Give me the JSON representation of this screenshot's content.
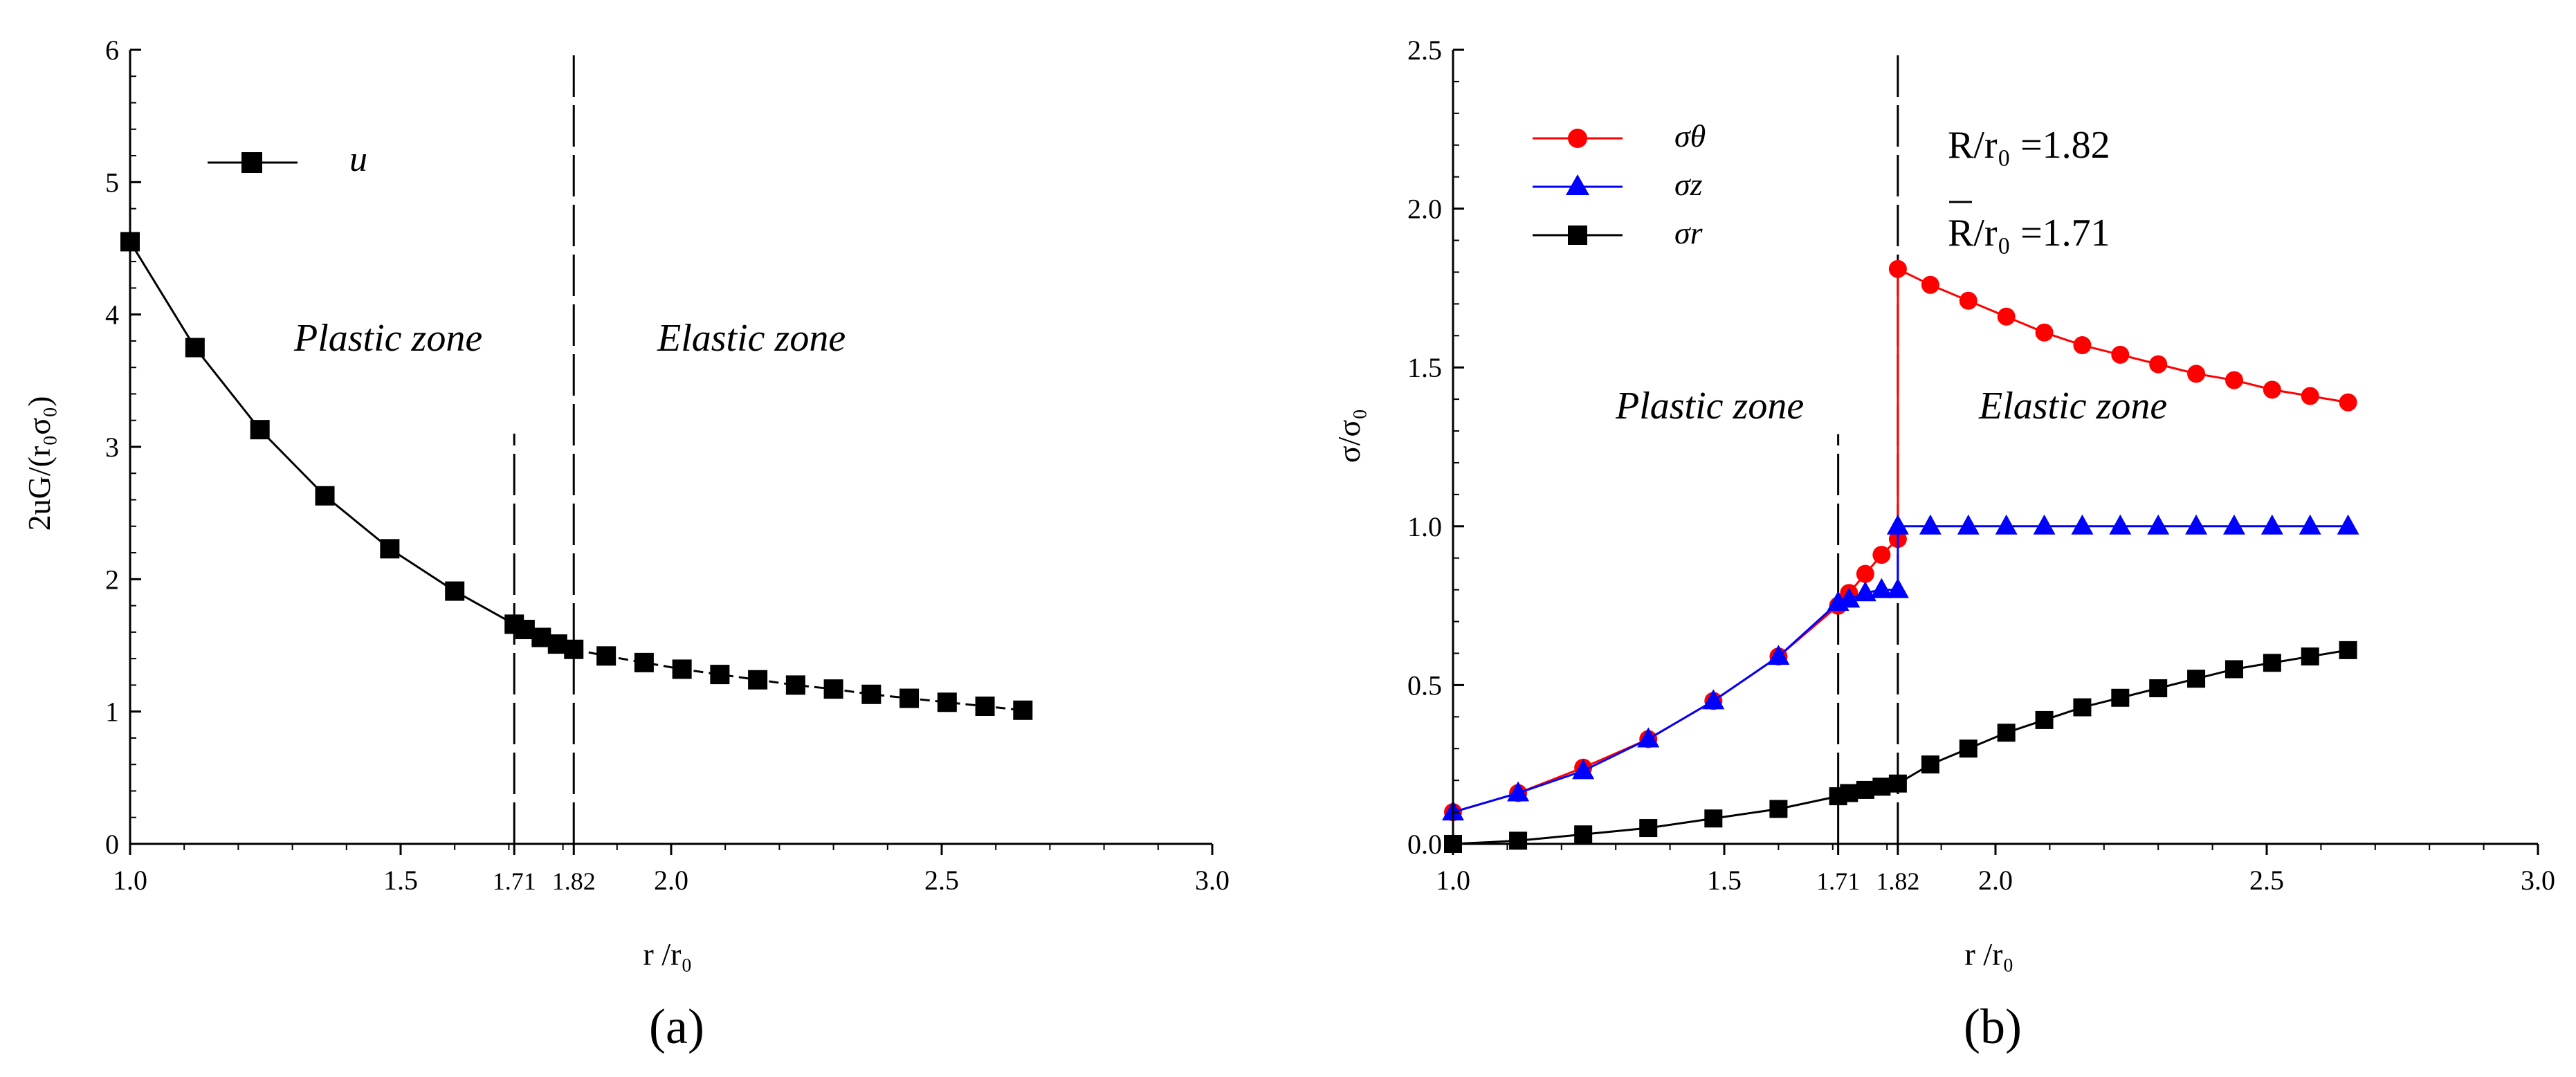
{
  "chart_data": [
    {
      "type": "line",
      "panel_label": "(a)",
      "xlabel": "r /r₀",
      "ylabel": "2uG/(r₀σ₀)",
      "xlim": [
        1.0,
        3.0
      ],
      "ylim": [
        0,
        6
      ],
      "xticks": [
        {
          "value": 1.0,
          "label": "1.0"
        },
        {
          "value": 1.5,
          "label": "1.5"
        },
        {
          "value": 1.71,
          "label": "1.71"
        },
        {
          "value": 1.82,
          "label": "1.82"
        },
        {
          "value": 2.0,
          "label": "2.0"
        },
        {
          "value": 2.5,
          "label": "2.5"
        },
        {
          "value": 3.0,
          "label": "3.0"
        }
      ],
      "yticks": [
        {
          "value": 0,
          "label": "0"
        },
        {
          "value": 1,
          "label": "1"
        },
        {
          "value": 2,
          "label": "2"
        },
        {
          "value": 3,
          "label": "3"
        },
        {
          "value": 4,
          "label": "4"
        },
        {
          "value": 5,
          "label": "5"
        },
        {
          "value": 6,
          "label": "6"
        }
      ],
      "vlines": [
        {
          "x": 1.71,
          "y_top": 3.1
        },
        {
          "x": 1.82,
          "y_top": 6.0
        }
      ],
      "annotations": [
        "Plastic zone",
        "Elastic zone"
      ],
      "series": [
        {
          "name": "u",
          "color": "#000000",
          "marker": "square",
          "x": [
            1.0,
            1.12,
            1.24,
            1.36,
            1.48,
            1.6,
            1.71,
            1.73,
            1.76,
            1.79,
            1.82,
            1.88,
            1.95,
            2.02,
            2.09,
            2.16,
            2.23,
            2.3,
            2.37,
            2.44,
            2.51,
            2.58,
            2.65
          ],
          "values": [
            4.55,
            3.75,
            3.13,
            2.63,
            2.23,
            1.91,
            1.66,
            1.62,
            1.56,
            1.51,
            1.47,
            1.42,
            1.37,
            1.32,
            1.28,
            1.24,
            1.2,
            1.17,
            1.13,
            1.1,
            1.07,
            1.04,
            1.01
          ]
        }
      ]
    },
    {
      "type": "line",
      "panel_label": "(b)",
      "xlabel": "r /r₀",
      "ylabel": "σ/σ₀",
      "xlim": [
        1.0,
        3.0
      ],
      "ylim": [
        0,
        2.5
      ],
      "xticks": [
        {
          "value": 1.0,
          "label": "1.0"
        },
        {
          "value": 1.5,
          "label": "1.5"
        },
        {
          "value": 1.71,
          "label": "1.71"
        },
        {
          "value": 1.82,
          "label": "1.82"
        },
        {
          "value": 2.0,
          "label": "2.0"
        },
        {
          "value": 2.5,
          "label": "2.5"
        },
        {
          "value": 3.0,
          "label": "3.0"
        }
      ],
      "yticks": [
        {
          "value": 0.0,
          "label": "0.0"
        },
        {
          "value": 0.5,
          "label": "0.5"
        },
        {
          "value": 1.0,
          "label": "1.0"
        },
        {
          "value": 1.5,
          "label": "1.5"
        },
        {
          "value": 2.0,
          "label": "2.0"
        },
        {
          "value": 2.5,
          "label": "2.5"
        }
      ],
      "vlines": [
        {
          "x": 1.71,
          "y_top": 1.29
        },
        {
          "x": 1.82,
          "y_top": 2.5
        }
      ],
      "annotations": [
        "Plastic zone",
        "Elastic zone"
      ],
      "text_annotations": {
        "R_label": "R/r₀ =1.82",
        "Rbar_label": "R/r₀ =1.71"
      },
      "series": [
        {
          "name": "σθ",
          "color": "#ff0000",
          "marker": "circle",
          "x": [
            1.0,
            1.12,
            1.24,
            1.36,
            1.48,
            1.6,
            1.71,
            1.73,
            1.76,
            1.79,
            1.82,
            1.82,
            1.88,
            1.95,
            2.02,
            2.09,
            2.16,
            2.23,
            2.3,
            2.37,
            2.44,
            2.51,
            2.58,
            2.65
          ],
          "values": [
            0.1,
            0.16,
            0.24,
            0.33,
            0.45,
            0.59,
            0.75,
            0.79,
            0.85,
            0.91,
            0.96,
            1.81,
            1.76,
            1.71,
            1.66,
            1.61,
            1.57,
            1.54,
            1.51,
            1.48,
            1.46,
            1.43,
            1.41,
            1.39
          ]
        },
        {
          "name": "σz",
          "color": "#0000ff",
          "marker": "triangle",
          "x": [
            1.0,
            1.12,
            1.24,
            1.36,
            1.48,
            1.6,
            1.71,
            1.73,
            1.76,
            1.79,
            1.82,
            1.82,
            1.88,
            1.95,
            2.02,
            2.09,
            2.16,
            2.23,
            2.3,
            2.37,
            2.44,
            2.51,
            2.58,
            2.65
          ],
          "values": [
            0.1,
            0.16,
            0.23,
            0.33,
            0.45,
            0.59,
            0.76,
            0.77,
            0.79,
            0.8,
            0.8,
            1.0,
            1.0,
            1.0,
            1.0,
            1.0,
            1.0,
            1.0,
            1.0,
            1.0,
            1.0,
            1.0,
            1.0,
            1.0
          ]
        },
        {
          "name": "σr",
          "color": "#000000",
          "marker": "square",
          "x": [
            1.0,
            1.12,
            1.24,
            1.36,
            1.48,
            1.6,
            1.71,
            1.73,
            1.76,
            1.79,
            1.82,
            1.88,
            1.95,
            2.02,
            2.09,
            2.16,
            2.23,
            2.3,
            2.37,
            2.44,
            2.51,
            2.58,
            2.65
          ],
          "values": [
            0.0,
            0.01,
            0.03,
            0.05,
            0.08,
            0.11,
            0.15,
            0.16,
            0.17,
            0.18,
            0.19,
            0.25,
            0.3,
            0.35,
            0.39,
            0.43,
            0.46,
            0.49,
            0.52,
            0.55,
            0.57,
            0.59,
            0.61
          ]
        }
      ]
    }
  ]
}
